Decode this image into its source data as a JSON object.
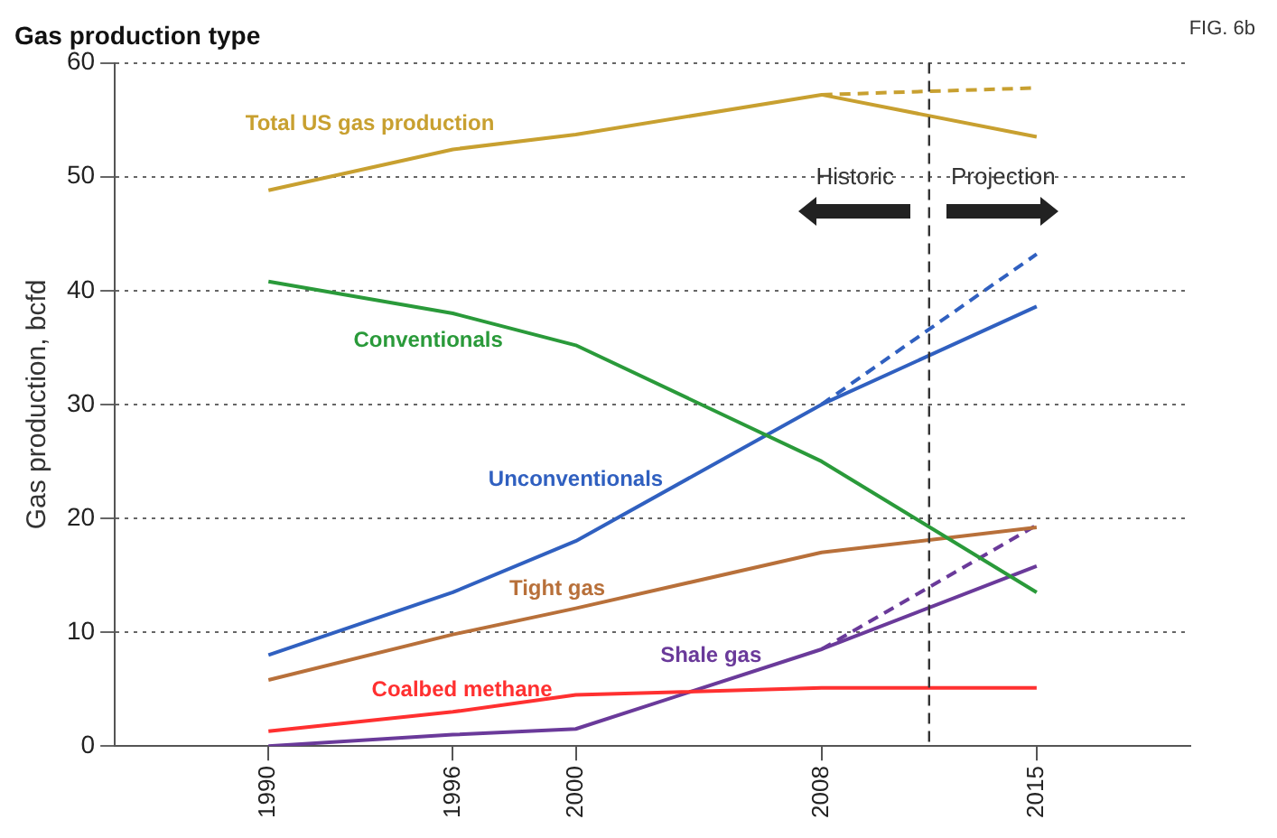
{
  "chart_data": {
    "type": "line",
    "title": "Gas production type",
    "ylabel": "Gas production, bcfd",
    "x": [
      1990,
      1996,
      2000,
      2008,
      2015
    ],
    "series": [
      {
        "name": "Total US gas production",
        "color": "#c8a030",
        "values": [
          48.8,
          52.4,
          53.7,
          57.2,
          53.5
        ]
      },
      {
        "color": "#c8a030",
        "values": [
          null,
          null,
          null,
          57.2,
          57.8
        ],
        "line_style": "dashed"
      },
      {
        "name": "Conventionals",
        "color": "#2a9a3a",
        "values": [
          40.8,
          38,
          35.2,
          25,
          13.5
        ]
      },
      {
        "name": "Unconventionals",
        "color": "#3060c0",
        "values": [
          8,
          13.5,
          18,
          30,
          38.6
        ]
      },
      {
        "color": "#3060c0",
        "values": [
          null,
          null,
          null,
          30,
          43.2
        ],
        "line_style": "dashed"
      },
      {
        "name": "Tight gas",
        "color": "#b8703a",
        "values": [
          5.8,
          9.8,
          12.1,
          17,
          19.2
        ]
      },
      {
        "name": "Coalbed methane",
        "color": "#ff3030",
        "values": [
          1.3,
          3,
          4.5,
          5.1,
          5.1
        ]
      },
      {
        "name": "Shale gas",
        "color": "#6a3a9a",
        "values": [
          0,
          1,
          1.5,
          8.5,
          15.8
        ]
      },
      {
        "color": "#6a3a9a",
        "values": [
          null,
          null,
          null,
          8.5,
          19.4
        ],
        "line_style": "dashed"
      }
    ],
    "xlim": [
      1985,
      2020
    ],
    "xticks": [
      1990,
      1996,
      2000,
      2008,
      2015
    ],
    "ylim": [
      0,
      60
    ],
    "yticks": [
      0,
      10,
      20,
      30,
      40,
      50,
      60
    ],
    "grid": "y",
    "legend": false,
    "marker": "none",
    "line_style": "solid",
    "ref_lines": [
      {
        "axis": "x",
        "value": 2011.5,
        "color": "#333333",
        "line_style": "dashed"
      }
    ],
    "annotations": [
      "FIG. 6b",
      "Historic",
      "Projection"
    ]
  }
}
